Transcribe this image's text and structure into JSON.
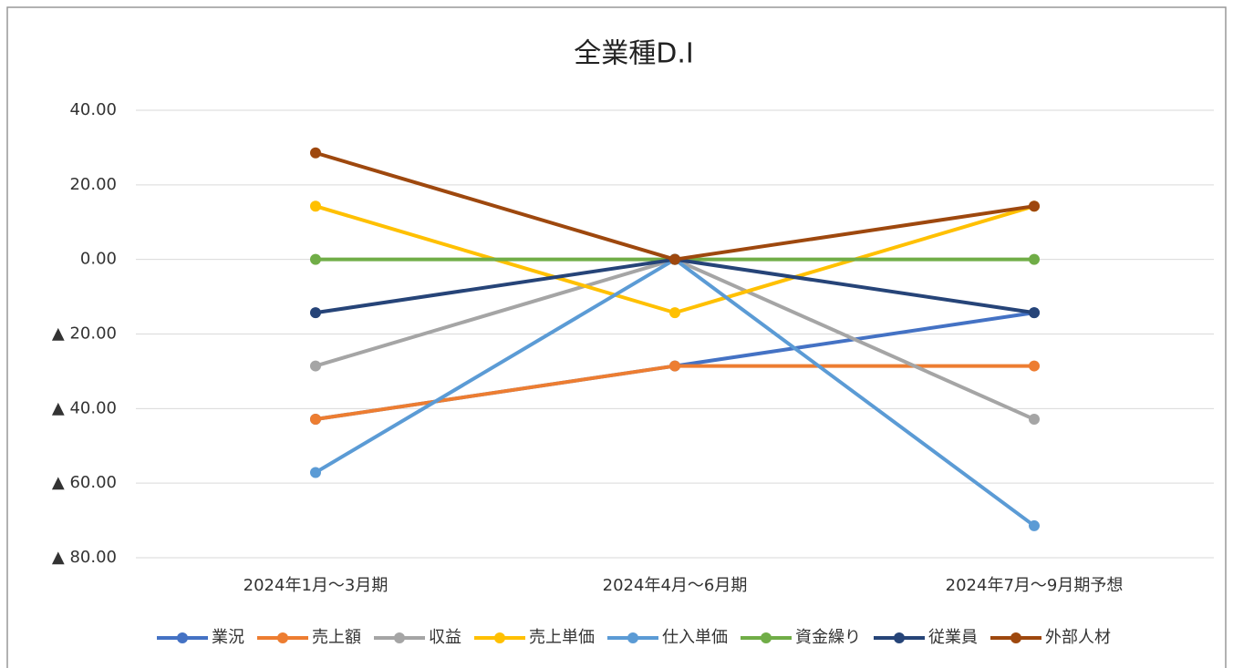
{
  "chart_data": {
    "type": "line",
    "title": "全業種D.I",
    "categories": [
      "2024年1月～3月期",
      "2024年4月～6月期",
      "2024年7月～9月期予想"
    ],
    "series": [
      {
        "name": "業況",
        "color": "#4472c4",
        "values": [
          -42.86,
          -28.57,
          -14.29
        ]
      },
      {
        "name": "売上額",
        "color": "#ed7d31",
        "values": [
          -42.86,
          -28.57,
          -28.57
        ]
      },
      {
        "name": "収益",
        "color": "#a5a5a5",
        "values": [
          -28.57,
          0,
          -42.86
        ]
      },
      {
        "name": "売上単価",
        "color": "#ffc000",
        "values": [
          14.29,
          -14.29,
          14.29
        ]
      },
      {
        "name": "仕入単価",
        "color": "#5b9bd5",
        "values": [
          -57.14,
          0,
          -71.43
        ]
      },
      {
        "name": "資金繰り",
        "color": "#70ad47",
        "values": [
          0,
          0,
          0
        ]
      },
      {
        "name": "従業員",
        "color": "#264478",
        "values": [
          -14.29,
          0,
          -14.29
        ]
      },
      {
        "name": "外部人材",
        "color": "#9e480e",
        "values": [
          28.57,
          0,
          14.29
        ]
      }
    ],
    "ylim": [
      -80,
      40
    ],
    "yticks": [
      {
        "value": -80,
        "label": "▲ 80.00"
      },
      {
        "value": -60,
        "label": "▲ 60.00"
      },
      {
        "value": -40,
        "label": "▲ 40.00"
      },
      {
        "value": -20,
        "label": "▲ 20.00"
      },
      {
        "value": 0,
        "label": "0.00"
      },
      {
        "value": 20,
        "label": "20.00"
      },
      {
        "value": 40,
        "label": "40.00"
      }
    ],
    "grid": true,
    "legend": "bottom"
  }
}
